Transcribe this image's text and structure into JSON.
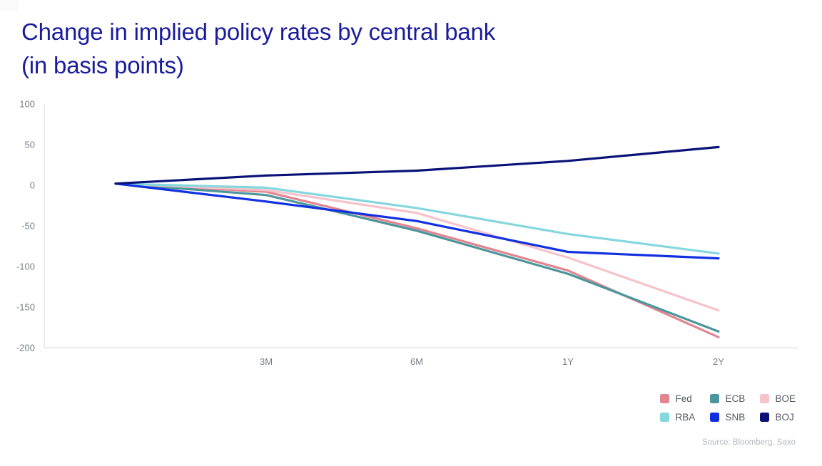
{
  "title": {
    "line1": "Change in implied policy rates by central bank",
    "line2": "(in basis points)"
  },
  "source": "Source: Bloomberg, Saxo",
  "colors": {
    "title": "#1a1c9e",
    "axis_line": "#d8dadf",
    "tick_label": "#797e86",
    "legend_text": "#545962",
    "source_text": "#b3b7bf"
  },
  "chart_data": {
    "type": "line",
    "title": "Change in implied policy rates by central bank (in basis points)",
    "xlabel": "",
    "ylabel": "",
    "categories": [
      "",
      "3M",
      "6M",
      "1Y",
      "2Y"
    ],
    "series": [
      {
        "name": "Fed",
        "color": "#e28590",
        "values": [
          2,
          -8,
          -53,
          -105,
          -187
        ]
      },
      {
        "name": "ECB",
        "color": "#4a969c",
        "values": [
          2,
          -12,
          -56,
          -109,
          -180
        ]
      },
      {
        "name": "BOE",
        "color": "#f6c3ca",
        "values": [
          2,
          -6,
          -34,
          -89,
          -154
        ]
      },
      {
        "name": "RBA",
        "color": "#85d7de",
        "values": [
          2,
          -3,
          -28,
          -60,
          -84
        ]
      },
      {
        "name": "SNB",
        "color": "#1130e0",
        "values": [
          2,
          -20,
          -44,
          -82,
          -90
        ]
      },
      {
        "name": "BOJ",
        "color": "#0a1278",
        "values": [
          2,
          12,
          18,
          30,
          47
        ]
      }
    ],
    "y_ticks": [
      100,
      50,
      0,
      -50,
      -100,
      -150,
      -200
    ],
    "ylim": [
      -200,
      100
    ],
    "grid": false,
    "legend_position": "bottom-right",
    "legend_rows": [
      [
        "Fed",
        "ECB",
        "BOE"
      ],
      [
        "RBA",
        "SNB",
        "BOJ"
      ]
    ]
  }
}
